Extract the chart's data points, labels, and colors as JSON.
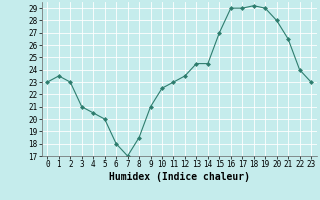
{
  "x": [
    0,
    1,
    2,
    3,
    4,
    5,
    6,
    7,
    8,
    9,
    10,
    11,
    12,
    13,
    14,
    15,
    16,
    17,
    18,
    19,
    20,
    21,
    22,
    23
  ],
  "y": [
    23,
    23.5,
    23,
    21,
    20.5,
    20,
    18,
    17,
    18.5,
    21,
    22.5,
    23,
    23.5,
    24.5,
    24.5,
    27,
    29,
    29,
    29.2,
    29,
    28,
    26.5,
    24,
    23
  ],
  "line_color": "#2e7d6e",
  "marker": "D",
  "marker_size": 2,
  "bg_color": "#c5ecec",
  "grid_color": "#ffffff",
  "xlabel": "Humidex (Indice chaleur)",
  "ylim": [
    17,
    29.5
  ],
  "yticks": [
    17,
    18,
    19,
    20,
    21,
    22,
    23,
    24,
    25,
    26,
    27,
    28,
    29
  ],
  "xlim": [
    -0.5,
    23.5
  ],
  "xticks": [
    0,
    1,
    2,
    3,
    4,
    5,
    6,
    7,
    8,
    9,
    10,
    11,
    12,
    13,
    14,
    15,
    16,
    17,
    18,
    19,
    20,
    21,
    22,
    23
  ],
  "xlabel_fontsize": 7,
  "tick_fontsize": 5.5,
  "linewidth": 0.8
}
